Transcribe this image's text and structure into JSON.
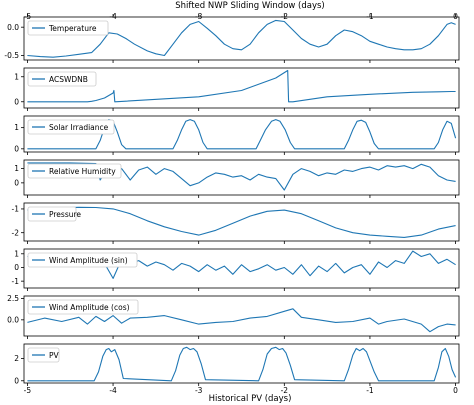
{
  "chart_data": {
    "type": "line",
    "top_axis_label": "Shifted NWP Sliding Window (days)",
    "bottom_axis_label": "Historical PV (days)",
    "x_ticks": [
      -5,
      -4,
      -3,
      -2,
      -1,
      0
    ],
    "xlim": [
      -5.04,
      0.04
    ],
    "line_color": "#1f77b4",
    "panels": [
      {
        "name": "Temperature",
        "ylim": [
          -0.58,
          0.18
        ],
        "y_ticks": [
          0.0,
          -0.5
        ],
        "y_tick_labels": [
          "0.0",
          "-0.5"
        ],
        "x": [
          -5,
          -4.85,
          -4.7,
          -4.55,
          -4.4,
          -4.25,
          -4.15,
          -4.05,
          -3.95,
          -3.85,
          -3.75,
          -3.6,
          -3.5,
          -3.4,
          -3.3,
          -3.2,
          -3.1,
          -3.0,
          -2.9,
          -2.8,
          -2.7,
          -2.6,
          -2.5,
          -2.4,
          -2.3,
          -2.2,
          -2.1,
          -2.0,
          -1.9,
          -1.8,
          -1.7,
          -1.6,
          -1.5,
          -1.4,
          -1.3,
          -1.2,
          -1.1,
          -1.0,
          -0.9,
          -0.8,
          -0.7,
          -0.6,
          -0.5,
          -0.4,
          -0.3,
          -0.2,
          -0.1,
          -0.05,
          0
        ],
        "y": [
          -0.5,
          -0.52,
          -0.53,
          -0.51,
          -0.48,
          -0.45,
          -0.3,
          -0.1,
          -0.12,
          -0.2,
          -0.3,
          -0.42,
          -0.47,
          -0.5,
          -0.3,
          -0.1,
          0.05,
          0.1,
          -0.02,
          -0.15,
          -0.3,
          -0.38,
          -0.4,
          -0.3,
          -0.1,
          0.05,
          0.12,
          0.1,
          -0.05,
          -0.2,
          -0.3,
          -0.35,
          -0.3,
          -0.15,
          -0.05,
          -0.08,
          -0.15,
          -0.25,
          -0.3,
          -0.35,
          -0.38,
          -0.4,
          -0.4,
          -0.38,
          -0.3,
          -0.15,
          0.05,
          0.08,
          0.05
        ]
      },
      {
        "name": "ACSWDNB",
        "ylim": [
          -0.25,
          1.35
        ],
        "y_ticks": [
          0,
          1
        ],
        "y_tick_labels": [
          "0",
          "1"
        ],
        "x": [
          -5,
          -4.3,
          -4.25,
          -4.2,
          -4.1,
          -4.0,
          -3.99,
          -3.98,
          -3.0,
          -2.5,
          -2.1,
          -1.96,
          -1.95,
          -1.9,
          -1.5,
          -1.0,
          -0.5,
          -0.2,
          -0.05,
          0
        ],
        "y": [
          0,
          0,
          0.02,
          0.05,
          0.15,
          0.35,
          0.45,
          0.0,
          0.2,
          0.45,
          0.95,
          1.25,
          0.0,
          0.0,
          0.2,
          0.3,
          0.38,
          0.4,
          0.41,
          0.41
        ]
      },
      {
        "name": "Solar Irradiance",
        "ylim": [
          -0.15,
          1.55
        ],
        "y_ticks": [
          0,
          1
        ],
        "y_tick_labels": [
          "0",
          "1"
        ],
        "x": [
          -5,
          -4.2,
          -4.15,
          -4.1,
          -4.05,
          -4.0,
          -3.95,
          -3.9,
          -3.85,
          -3.3,
          -3.25,
          -3.2,
          -3.15,
          -3.1,
          -3.05,
          -3.0,
          -2.95,
          -2.9,
          -2.33,
          -2.28,
          -2.22,
          -2.15,
          -2.1,
          -2.05,
          -1.99,
          -1.93,
          -1.88,
          -1.3,
          -1.25,
          -1.2,
          -1.15,
          -1.1,
          -1.05,
          -1.0,
          -0.95,
          -0.9,
          -0.25,
          -0.2,
          -0.15,
          -0.1,
          -0.05,
          0
        ],
        "y": [
          0,
          0,
          0.4,
          1.0,
          1.38,
          1.3,
          0.8,
          0.2,
          0,
          0,
          0.4,
          0.9,
          1.3,
          1.38,
          1.3,
          0.9,
          0.3,
          0,
          0,
          0.4,
          0.9,
          1.3,
          1.38,
          1.3,
          0.9,
          0.3,
          0,
          0,
          0.4,
          0.9,
          1.3,
          1.35,
          1.25,
          0.8,
          0.25,
          0,
          0,
          0.3,
          0.9,
          1.3,
          1.2,
          0.5
        ]
      },
      {
        "name": "Relative Humidity",
        "ylim": [
          -0.85,
          1.6
        ],
        "y_ticks": [
          1,
          0
        ],
        "y_tick_labels": [
          "1",
          "0"
        ],
        "x": [
          -5,
          -4.5,
          -4.2,
          -4.15,
          -4.1,
          -4.0,
          -3.9,
          -3.8,
          -3.7,
          -3.6,
          -3.5,
          -3.4,
          -3.3,
          -3.2,
          -3.1,
          -3.0,
          -2.9,
          -2.8,
          -2.7,
          -2.6,
          -2.5,
          -2.4,
          -2.3,
          -2.2,
          -2.1,
          -2.0,
          -1.9,
          -1.8,
          -1.7,
          -1.6,
          -1.5,
          -1.4,
          -1.3,
          -1.2,
          -1.1,
          -1.0,
          -0.9,
          -0.8,
          -0.7,
          -0.6,
          -0.5,
          -0.4,
          -0.3,
          -0.2,
          -0.1,
          0
        ],
        "y": [
          1.4,
          1.4,
          1.35,
          0.2,
          0.7,
          0.5,
          1.0,
          0.2,
          0.9,
          1.1,
          0.6,
          1.0,
          0.8,
          0.3,
          -0.2,
          0.0,
          0.4,
          0.7,
          0.6,
          0.4,
          0.5,
          0.2,
          0.6,
          0.4,
          0.3,
          -0.5,
          0.6,
          1.0,
          0.8,
          0.5,
          0.7,
          0.6,
          0.9,
          0.8,
          1.0,
          1.1,
          0.9,
          1.2,
          1.1,
          1.2,
          1.0,
          1.3,
          1.1,
          0.5,
          0.2,
          0.1
        ]
      },
      {
        "name": "Pressure",
        "ylim": [
          -2.35,
          -0.75
        ],
        "y_ticks": [
          -1,
          -2
        ],
        "y_tick_labels": [
          "-1",
          "-2"
        ],
        "x": [
          -5,
          -4.8,
          -4.6,
          -4.4,
          -4.2,
          -4.0,
          -3.8,
          -3.6,
          -3.4,
          -3.2,
          -3.0,
          -2.8,
          -2.6,
          -2.4,
          -2.2,
          -2.0,
          -1.8,
          -1.6,
          -1.4,
          -1.2,
          -1.0,
          -0.8,
          -0.6,
          -0.4,
          -0.2,
          0
        ],
        "y": [
          -1.05,
          -0.98,
          -0.95,
          -0.93,
          -0.94,
          -1.0,
          -1.2,
          -1.5,
          -1.75,
          -1.95,
          -2.1,
          -1.9,
          -1.6,
          -1.3,
          -1.1,
          -1.05,
          -1.2,
          -1.5,
          -1.8,
          -2.0,
          -2.1,
          -2.15,
          -2.2,
          -2.1,
          -1.85,
          -1.7
        ]
      },
      {
        "name": "Wind Amplitude (sin)",
        "ylim": [
          -1.5,
          1.35
        ],
        "y_ticks": [
          1,
          0,
          -1
        ],
        "y_tick_labels": [
          "1",
          "0",
          "-1"
        ],
        "x": [
          -5,
          -4.8,
          -4.6,
          -4.4,
          -4.3,
          -4.2,
          -4.1,
          -4.0,
          -3.9,
          -3.8,
          -3.7,
          -3.6,
          -3.5,
          -3.4,
          -3.3,
          -3.2,
          -3.1,
          -3.0,
          -2.9,
          -2.8,
          -2.7,
          -2.6,
          -2.5,
          -2.4,
          -2.3,
          -2.2,
          -2.1,
          -2.0,
          -1.9,
          -1.8,
          -1.7,
          -1.6,
          -1.5,
          -1.4,
          -1.3,
          -1.2,
          -1.1,
          -1.0,
          -0.9,
          -0.8,
          -0.7,
          -0.6,
          -0.5,
          -0.4,
          -0.3,
          -0.2,
          -0.1,
          0
        ],
        "y": [
          0.8,
          0.7,
          0.75,
          0.7,
          0.2,
          0.6,
          0.3,
          -0.8,
          0.6,
          0.3,
          0.5,
          0.1,
          0.4,
          0.2,
          -0.2,
          0.3,
          0.1,
          -0.3,
          0.2,
          -0.2,
          0.1,
          -0.5,
          0.2,
          -0.3,
          -0.1,
          0.2,
          -0.2,
          0.0,
          -0.5,
          0.2,
          -0.6,
          0.1,
          -0.3,
          0.3,
          -0.4,
          0.0,
          0.2,
          -0.5,
          0.4,
          0.0,
          0.5,
          0.3,
          1.2,
          0.8,
          1.0,
          0.3,
          0.6,
          0.2
        ]
      },
      {
        "name": "Wind Amplitude (cos)",
        "ylim": [
          -1.9,
          2.8
        ],
        "y_ticks": [
          2.5,
          0.0
        ],
        "y_tick_labels": [
          "2.5",
          "0.0"
        ],
        "x": [
          -5,
          -4.8,
          -4.6,
          -4.4,
          -4.3,
          -4.2,
          -4.1,
          -4.0,
          -3.9,
          -3.8,
          -3.6,
          -3.4,
          -3.2,
          -3.0,
          -2.8,
          -2.6,
          -2.4,
          -2.2,
          -2.0,
          -1.9,
          -1.8,
          -1.6,
          -1.4,
          -1.2,
          -1.0,
          -0.9,
          -0.8,
          -0.6,
          -0.4,
          -0.3,
          -0.2,
          -0.1,
          0
        ],
        "y": [
          -0.3,
          0.2,
          -0.2,
          0.3,
          -0.5,
          0.4,
          -0.2,
          0.5,
          -0.4,
          0.2,
          0.3,
          0.5,
          0.0,
          -0.5,
          -0.3,
          -0.2,
          0.2,
          0.4,
          1.0,
          1.3,
          0.3,
          0.0,
          -0.3,
          -0.2,
          0.2,
          -0.5,
          -0.2,
          0.1,
          -0.5,
          -1.4,
          -0.8,
          -0.5,
          -0.6
        ]
      },
      {
        "name": "PV",
        "ylim": [
          -0.2,
          3.3
        ],
        "y_ticks": [
          2,
          0
        ],
        "y_tick_labels": [
          "2",
          "0"
        ],
        "x": [
          -5,
          -4.22,
          -4.17,
          -4.12,
          -4.08,
          -4.05,
          -4.02,
          -3.98,
          -3.93,
          -3.88,
          -3.32,
          -3.27,
          -3.22,
          -3.18,
          -3.14,
          -3.1,
          -3.06,
          -3.02,
          -2.97,
          -2.92,
          -2.3,
          -2.25,
          -2.2,
          -2.15,
          -2.1,
          -2.06,
          -2.02,
          -1.98,
          -1.93,
          -1.88,
          -1.3,
          -1.25,
          -1.2,
          -1.16,
          -1.12,
          -1.08,
          -1.04,
          -1.0,
          -0.95,
          -0.9,
          -0.25,
          -0.2,
          -0.16,
          -0.12,
          -0.08,
          -0.04,
          0
        ],
        "y": [
          0,
          0,
          0.8,
          2.2,
          2.8,
          2.9,
          2.6,
          2.8,
          1.9,
          0.2,
          0,
          0.9,
          2.3,
          2.9,
          3.0,
          2.8,
          2.9,
          2.6,
          1.5,
          0.1,
          0,
          1.0,
          2.4,
          2.9,
          3.0,
          2.8,
          2.9,
          2.5,
          1.4,
          0.1,
          0,
          1.0,
          2.3,
          2.9,
          2.7,
          2.9,
          2.6,
          1.8,
          0.8,
          0.0,
          0,
          1.2,
          2.6,
          2.9,
          2.2,
          1.0,
          0.3
        ]
      }
    ]
  }
}
